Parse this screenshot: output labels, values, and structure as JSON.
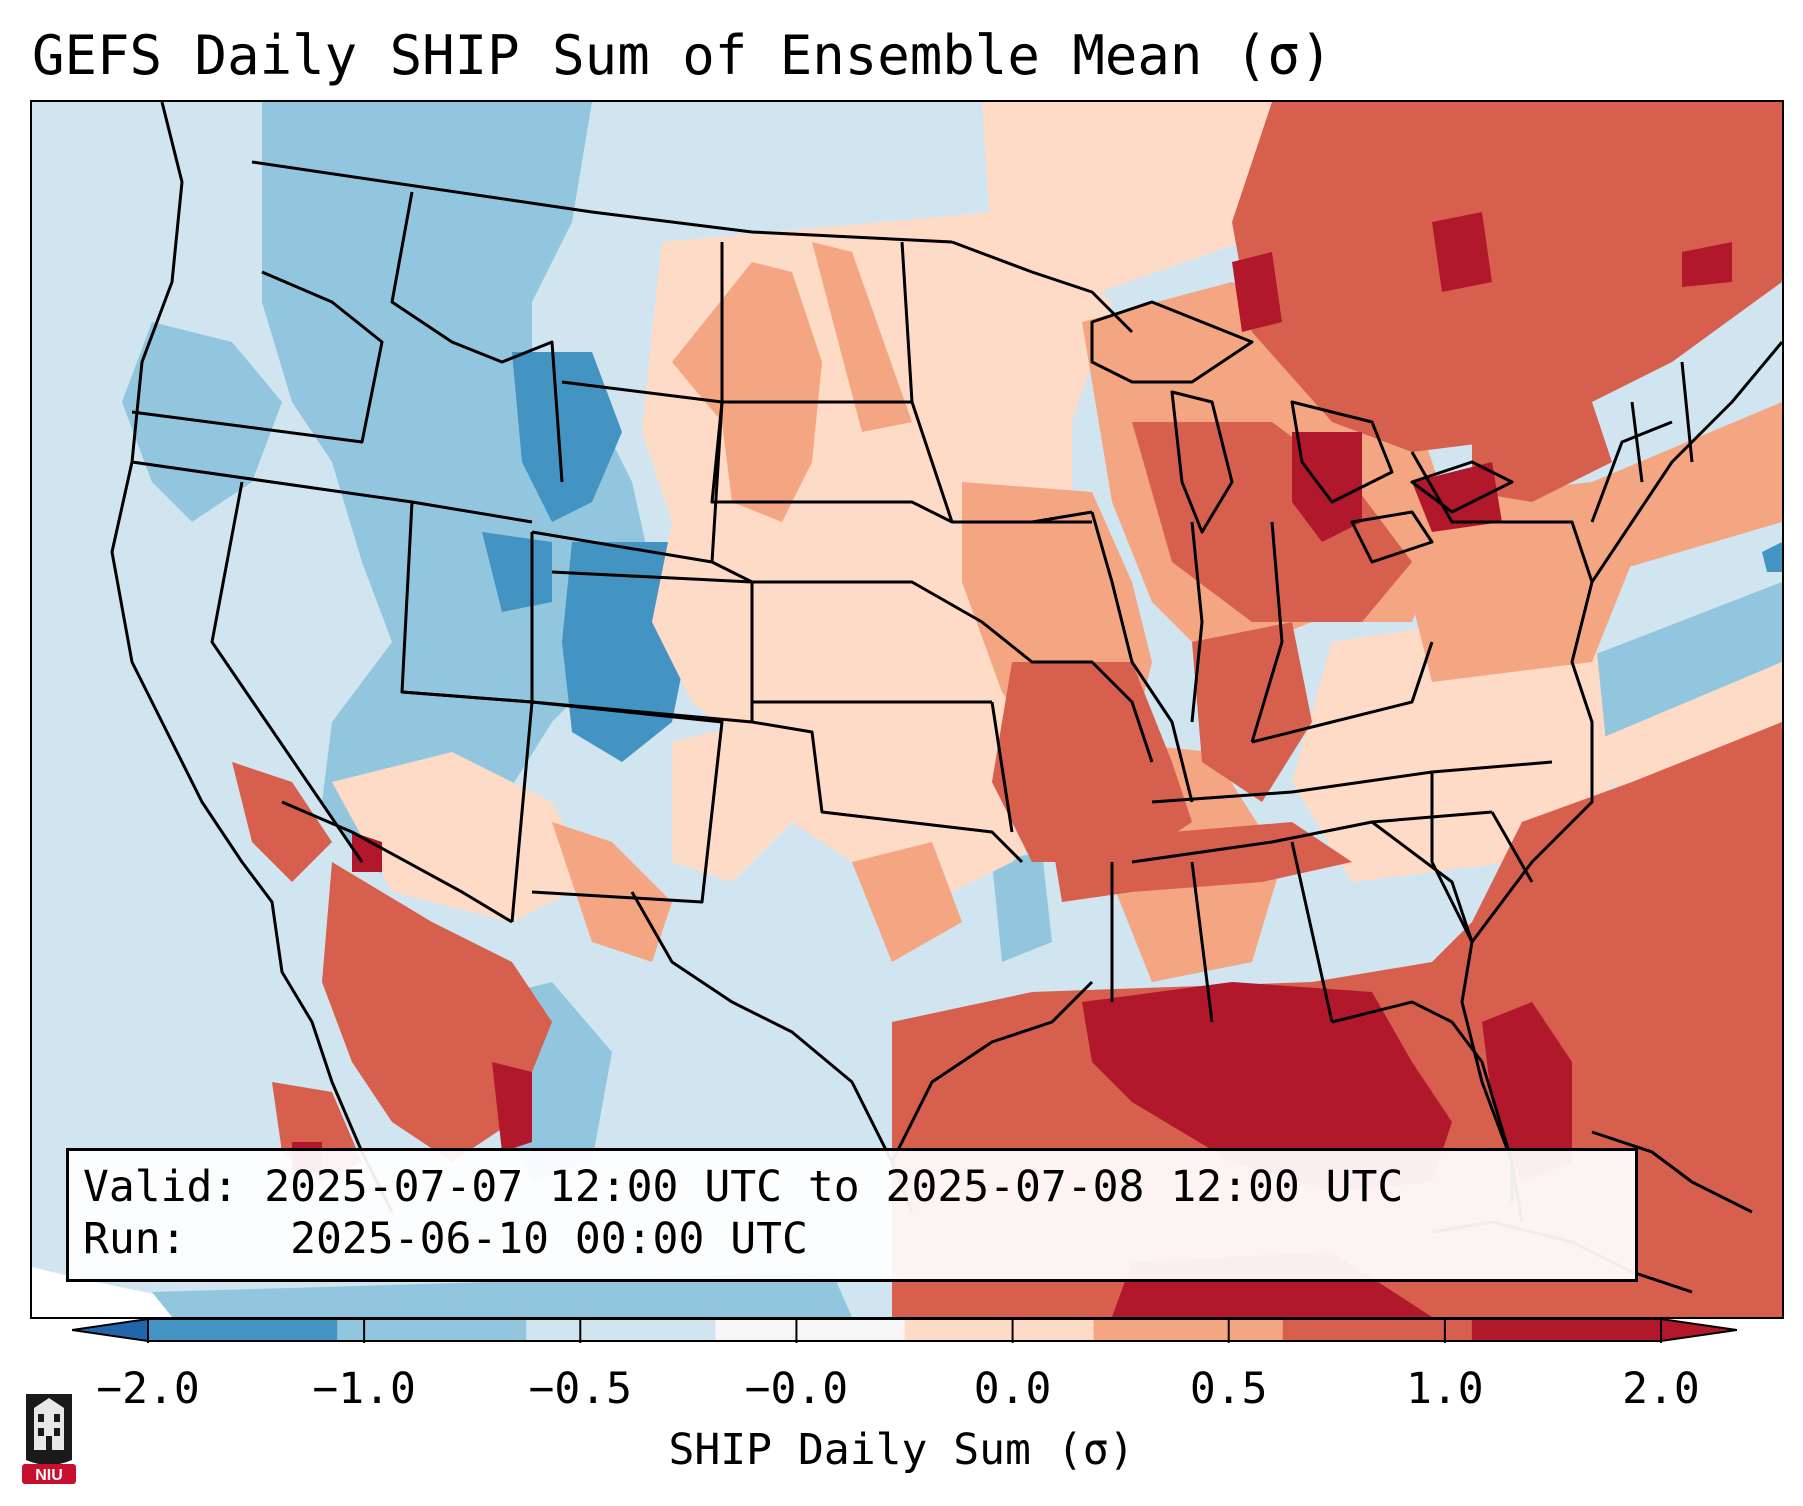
{
  "title": "GEFS Daily SHIP Sum of Ensemble Mean (σ)",
  "info": {
    "valid_label": "Valid:",
    "valid_value": "2025-07-07 12:00 UTC to 2025-07-08 12:00 UTC",
    "run_label": "Run:",
    "run_value": "2025-06-10 00:00 UTC"
  },
  "colorbar": {
    "label": "SHIP Daily Sum (σ)",
    "ticks": [
      "−2.0",
      "−1.0",
      "−0.5",
      "−0.0",
      "0.0",
      "0.5",
      "1.0",
      "2.0"
    ],
    "colors": [
      "#4393c3",
      "#92c5de",
      "#d1e5f0",
      "#f7f7f7",
      "#fddbc7",
      "#f4a582",
      "#d6604d",
      "#b2182b"
    ],
    "extend": "both"
  },
  "palette": {
    "strong_neg": "#4393c3",
    "mod_neg": "#92c5de",
    "weak_neg": "#d1e5f0",
    "weak_pos": "#fddbc7",
    "mod_pos": "#f4a582",
    "strong_pos": "#d6604d",
    "extreme_pos": "#b2182b"
  },
  "logo": {
    "text": "NIU",
    "color": "#c8102e"
  }
}
